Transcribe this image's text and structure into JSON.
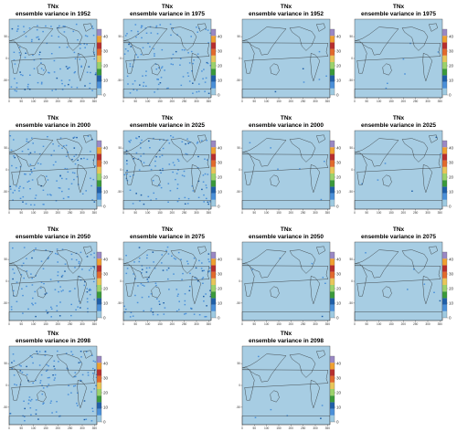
{
  "chart_data": {
    "type": "heatmap",
    "variable": "TNx",
    "subtitle_prefix": "ensemble variance in",
    "x_ticks": [
      "0",
      "50",
      "100",
      "150",
      "200",
      "250",
      "300",
      "350"
    ],
    "y_ticks": [
      "50",
      "0",
      "-50"
    ],
    "colorbar_ticks": [
      "0",
      "10",
      "20",
      "30",
      "40"
    ],
    "colorbar_range": [
      0,
      45
    ],
    "colorbar_colors": [
      "#9ecae1",
      "#4a90d9",
      "#1f5fa8",
      "#3a9a3a",
      "#9bd26b",
      "#e8c65a",
      "#e26a2c",
      "#b72e2e",
      "#f0a030",
      "#9a88c4"
    ],
    "background_color": "#a7cde3",
    "panels": [
      {
        "var": "TNx",
        "subtitle": "ensemble variance in 1952",
        "group": "left"
      },
      {
        "var": "TNx",
        "subtitle": "ensemble variance in 1975",
        "group": "left"
      },
      {
        "var": "TNx",
        "subtitle": "ensemble variance in 1952",
        "group": "right"
      },
      {
        "var": "TNx",
        "subtitle": "ensemble variance in 1975",
        "group": "right"
      },
      {
        "var": "TNx",
        "subtitle": "ensemble variance in 2000",
        "group": "left"
      },
      {
        "var": "TNx",
        "subtitle": "ensemble variance in 2025",
        "group": "left"
      },
      {
        "var": "TNx",
        "subtitle": "ensemble variance in 2000",
        "group": "right"
      },
      {
        "var": "TNx",
        "subtitle": "ensemble variance in 2025",
        "group": "right"
      },
      {
        "var": "TNx",
        "subtitle": "ensemble variance in 2050",
        "group": "left"
      },
      {
        "var": "TNx",
        "subtitle": "ensemble variance in 2075",
        "group": "left"
      },
      {
        "var": "TNx",
        "subtitle": "ensemble variance in 2050",
        "group": "right"
      },
      {
        "var": "TNx",
        "subtitle": "ensemble variance in 2075",
        "group": "right"
      },
      {
        "var": "TNx",
        "subtitle": "ensemble variance in 2098",
        "group": "left"
      },
      {
        "var": "TNx",
        "subtitle": "ensemble variance in 2098",
        "group": "right"
      }
    ]
  }
}
